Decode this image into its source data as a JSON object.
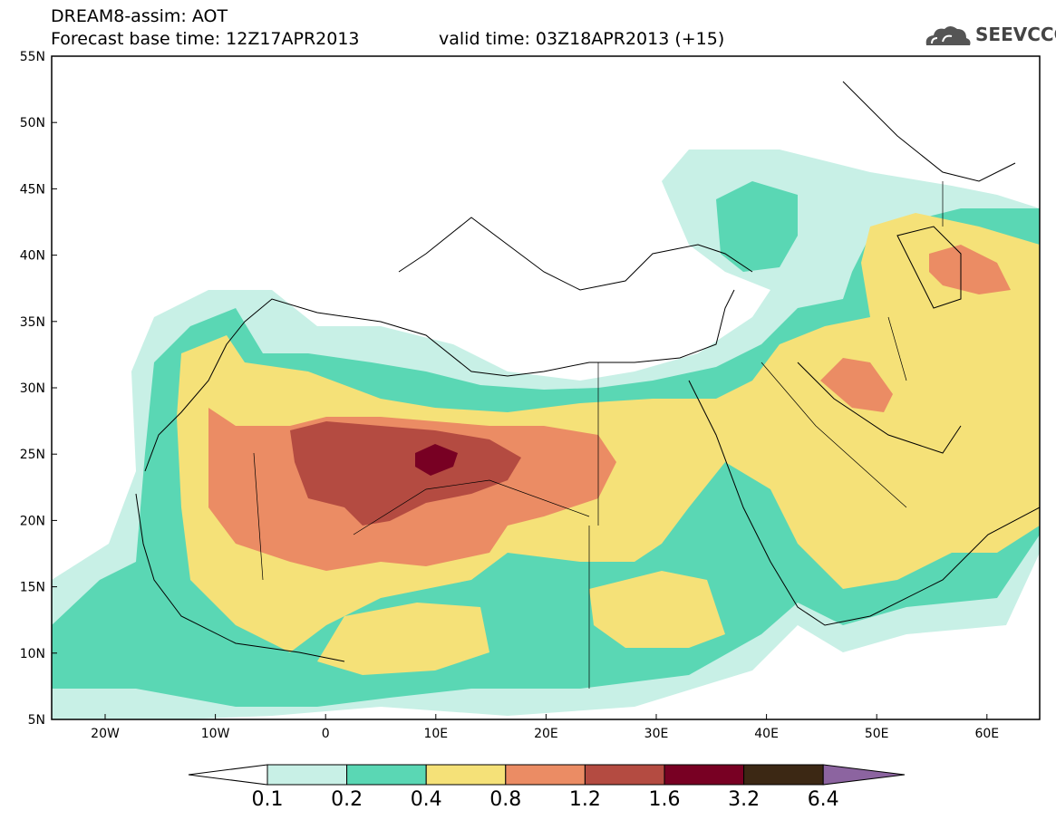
{
  "header": {
    "line1": "DREAM8-assim: AOT",
    "line2_left": "Forecast base time: 12Z17APR2013",
    "line2_right": "valid time: 03Z18APR2013 (+15)"
  },
  "logo": {
    "text": "SEEVCCC",
    "icon": "cloud-icon"
  },
  "map": {
    "lat_labels": [
      "55N",
      "50N",
      "45N",
      "40N",
      "35N",
      "30N",
      "25N",
      "20N",
      "15N",
      "10N",
      "5N"
    ],
    "lon_labels": [
      "20W",
      "10W",
      "0",
      "10E",
      "20E",
      "30E",
      "40E",
      "50E",
      "60E"
    ]
  },
  "colorbar": {
    "labels": [
      "0.1",
      "0.2",
      "0.4",
      "0.8",
      "1.2",
      "1.6",
      "3.2",
      "6.4"
    ],
    "colors": [
      "#ffffff",
      "#c8f0e6",
      "#5ad7b4",
      "#f5e178",
      "#eb8c64",
      "#b44b41",
      "#780023",
      "#3c2814",
      "#8c64a0"
    ]
  }
}
